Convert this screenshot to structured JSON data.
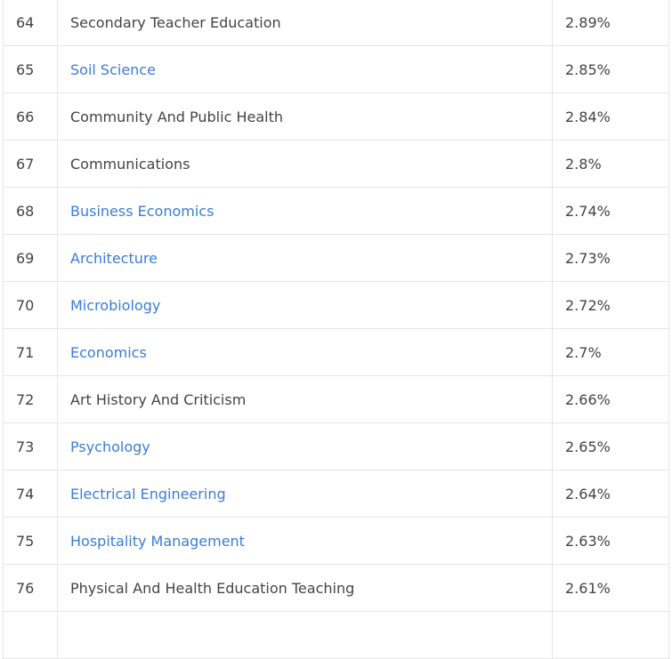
{
  "table": {
    "rows": [
      {
        "rank": "64",
        "major": "Secondary Teacher Education",
        "percent": "2.89%",
        "is_link": false
      },
      {
        "rank": "65",
        "major": "Soil Science",
        "percent": "2.85%",
        "is_link": true
      },
      {
        "rank": "66",
        "major": "Community And Public Health",
        "percent": "2.84%",
        "is_link": false
      },
      {
        "rank": "67",
        "major": "Communications",
        "percent": "2.8%",
        "is_link": false
      },
      {
        "rank": "68",
        "major": "Business Economics",
        "percent": "2.74%",
        "is_link": true
      },
      {
        "rank": "69",
        "major": "Architecture",
        "percent": "2.73%",
        "is_link": true
      },
      {
        "rank": "70",
        "major": "Microbiology",
        "percent": "2.72%",
        "is_link": true
      },
      {
        "rank": "71",
        "major": "Economics",
        "percent": "2.7%",
        "is_link": true
      },
      {
        "rank": "72",
        "major": "Art History And Criticism",
        "percent": "2.66%",
        "is_link": false
      },
      {
        "rank": "73",
        "major": "Psychology",
        "percent": "2.65%",
        "is_link": true
      },
      {
        "rank": "74",
        "major": "Electrical Engineering",
        "percent": "2.64%",
        "is_link": true
      },
      {
        "rank": "75",
        "major": "Hospitality Management",
        "percent": "2.63%",
        "is_link": true
      },
      {
        "rank": "76",
        "major": "Physical And Health Education Teaching",
        "percent": "2.61%",
        "is_link": false
      }
    ]
  },
  "colors": {
    "link": "#3b7dd8",
    "text": "#444444",
    "border": "#e6e6e6"
  }
}
